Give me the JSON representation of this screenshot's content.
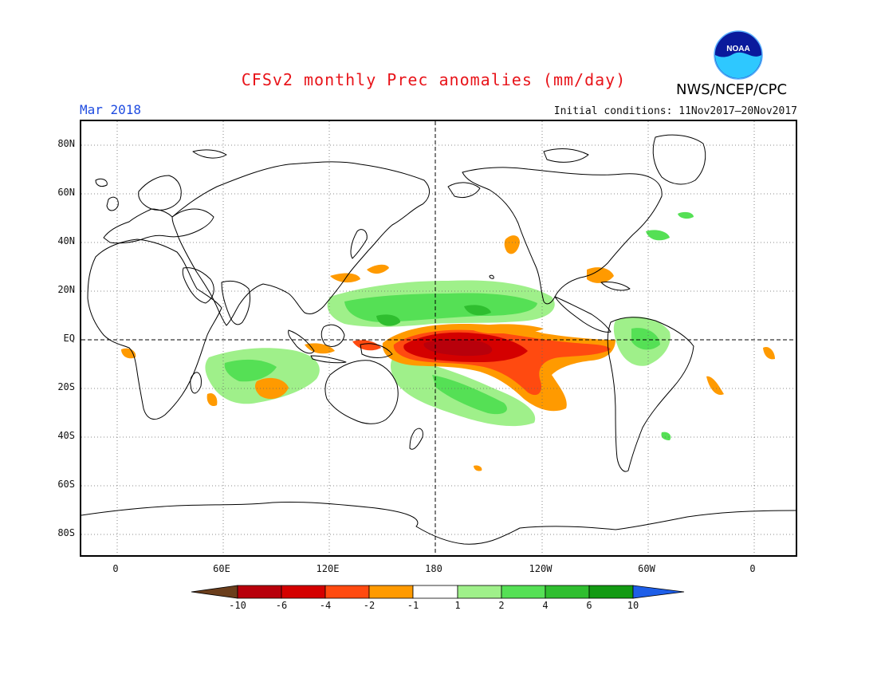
{
  "header": {
    "title": "CFSv2 monthly Prec anomalies (mm/day)",
    "month": "Mar 2018",
    "initial_conditions": "Initial conditions: 11Nov2017–20Nov2017",
    "org": "NWS/NCEP/CPC",
    "logo_text": "NOAA"
  },
  "axes": {
    "lat_labels": [
      "80N",
      "60N",
      "40N",
      "20N",
      "EQ",
      "20S",
      "40S",
      "60S",
      "80S"
    ],
    "lon_labels": [
      "0",
      "60E",
      "120E",
      "180",
      "120W",
      "60W",
      "0"
    ]
  },
  "colorbar": {
    "labels": [
      "-10",
      "-6",
      "-4",
      "-2",
      "-1",
      "1",
      "2",
      "4",
      "6",
      "10"
    ],
    "colors": [
      "#6b3e1c",
      "#b8000b",
      "#d40000",
      "#ff4a10",
      "#ff9a00",
      "#ffffff",
      "#9ff08a",
      "#55e055",
      "#2fbe2f",
      "#129a12",
      "#1e5ee8"
    ]
  },
  "map_colors": {
    "ocean_bg": "#ffffff",
    "coast": "#000000",
    "wet_light": "#9ff08a",
    "wet_mid": "#55e055",
    "wet_dark": "#2fbe2f",
    "dry_light": "#ff9a00",
    "dry_mid": "#ff4a10",
    "dry_dark": "#d40000",
    "dry_darkest": "#b8000b"
  }
}
